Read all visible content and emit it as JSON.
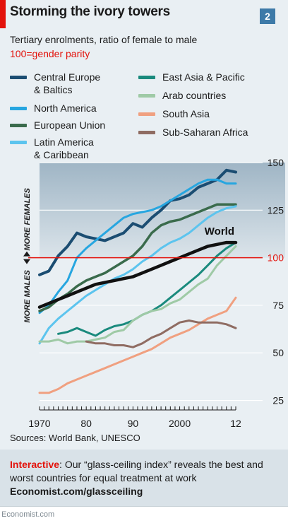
{
  "header": {
    "title": "Storming the ivory towers",
    "badge": "2",
    "subtitle": "Tertiary enrolments, ratio of female to male",
    "note": "100=gender parity"
  },
  "legend": {
    "items": [
      {
        "label": "Central Europe\n& Baltics",
        "color": "#1b4d72"
      },
      {
        "label": "North America",
        "color": "#27a6e0"
      },
      {
        "label": "European Union",
        "color": "#3a6b4c"
      },
      {
        "label": "Latin America\n& Caribbean",
        "color": "#5cc4ee"
      },
      {
        "label": "East Asia & Pacific",
        "color": "#1a8a7d"
      },
      {
        "label": "Arab countries",
        "color": "#9fcaa6"
      },
      {
        "label": "South Asia",
        "color": "#f0a080"
      },
      {
        "label": "Sub-Saharan Africa",
        "color": "#8f6c62"
      }
    ]
  },
  "chart_data": {
    "type": "line",
    "title": "Storming the ivory towers",
    "subtitle": "Tertiary enrolments, ratio of female to male",
    "xlim": [
      1970,
      2012
    ],
    "ylim": [
      20,
      150
    ],
    "yticks": [
      25,
      50,
      75,
      100,
      125,
      150
    ],
    "xtick_labels": [
      {
        "x": 1970,
        "label": "1970"
      },
      {
        "x": 1980,
        "label": "80"
      },
      {
        "x": 1990,
        "label": "90"
      },
      {
        "x": 2000,
        "label": "2000"
      },
      {
        "x": 2012,
        "label": "12"
      }
    ],
    "parity_line": 100,
    "parity_label": "100",
    "zone_labels": {
      "above": "MORE FEMALES",
      "below": "MORE MALES"
    },
    "annotations": [
      {
        "text": "World",
        "series": "World"
      }
    ],
    "series": [
      {
        "name": "Central Europe & Baltics",
        "color": "#1b4d72",
        "width": 4,
        "x": [
          1970,
          1972,
          1974,
          1976,
          1978,
          1980,
          1982,
          1984,
          1986,
          1988,
          1990,
          1992,
          1994,
          1996,
          1998,
          2000,
          2002,
          2004,
          2006,
          2008,
          2010,
          2012
        ],
        "y": [
          91,
          93,
          101,
          106,
          113,
          111,
          110,
          109,
          111,
          113,
          118,
          116,
          121,
          125,
          130,
          131,
          133,
          137,
          139,
          141,
          146,
          145
        ]
      },
      {
        "name": "North America",
        "color": "#27a6e0",
        "width": 3,
        "x": [
          1970,
          1972,
          1974,
          1976,
          1978,
          1980,
          1982,
          1984,
          1986,
          1988,
          1990,
          1992,
          1994,
          1996,
          1998,
          2000,
          2002,
          2004,
          2006,
          2008,
          2010,
          2012
        ],
        "y": [
          71,
          75,
          82,
          88,
          100,
          105,
          109,
          113,
          117,
          121,
          123,
          124,
          125,
          127,
          130,
          133,
          136,
          139,
          141,
          141,
          139,
          139
        ]
      },
      {
        "name": "European Union",
        "color": "#3a6b4c",
        "width": 3.5,
        "x": [
          1970,
          1972,
          1974,
          1976,
          1978,
          1980,
          1982,
          1984,
          1986,
          1988,
          1990,
          1992,
          1994,
          1996,
          1998,
          2000,
          2002,
          2004,
          2006,
          2008,
          2010,
          2012
        ],
        "y": [
          72,
          74,
          78,
          81,
          85,
          88,
          90,
          92,
          95,
          98,
          101,
          106,
          113,
          117,
          119,
          120,
          122,
          124,
          126,
          128,
          128,
          128
        ]
      },
      {
        "name": "Latin America & Caribbean",
        "color": "#5cc4ee",
        "width": 3,
        "x": [
          1970,
          1972,
          1974,
          1976,
          1978,
          1980,
          1982,
          1984,
          1986,
          1988,
          1990,
          1992,
          1994,
          1996,
          1998,
          2000,
          2002,
          2004,
          2006,
          2008,
          2010,
          2012
        ],
        "y": [
          55,
          63,
          68,
          72,
          76,
          80,
          83,
          86,
          89,
          91,
          94,
          98,
          101,
          105,
          108,
          110,
          113,
          117,
          121,
          124,
          126,
          127
        ]
      },
      {
        "name": "East Asia & Pacific",
        "color": "#1a8a7d",
        "width": 3,
        "x": [
          1974,
          1976,
          1978,
          1980,
          1982,
          1984,
          1986,
          1988,
          1990,
          1992,
          1994,
          1996,
          1998,
          2000,
          2002,
          2004,
          2006,
          2008,
          2010,
          2012
        ],
        "y": [
          60,
          61,
          63,
          61,
          59,
          62,
          64,
          65,
          67,
          70,
          72,
          75,
          79,
          83,
          87,
          91,
          96,
          101,
          105,
          108
        ]
      },
      {
        "name": "Arab countries",
        "color": "#9fcaa6",
        "width": 3,
        "x": [
          1970,
          1972,
          1974,
          1976,
          1978,
          1980,
          1982,
          1984,
          1986,
          1988,
          1990,
          1992,
          1994,
          1996,
          1998,
          2000,
          2002,
          2004,
          2006,
          2008,
          2010,
          2012
        ],
        "y": [
          56,
          56,
          57,
          55,
          56,
          56,
          57,
          58,
          61,
          62,
          67,
          70,
          72,
          73,
          76,
          78,
          82,
          86,
          89,
          96,
          101,
          106
        ]
      },
      {
        "name": "South Asia",
        "color": "#f0a080",
        "width": 3,
        "x": [
          1970,
          1972,
          1974,
          1976,
          1978,
          1980,
          1982,
          1984,
          1986,
          1988,
          1990,
          1992,
          1994,
          1996,
          1998,
          2000,
          2002,
          2004,
          2006,
          2008,
          2010,
          2012
        ],
        "y": [
          29,
          29,
          31,
          34,
          36,
          38,
          40,
          42,
          44,
          46,
          48,
          50,
          52,
          55,
          58,
          60,
          62,
          65,
          68,
          70,
          72,
          79
        ]
      },
      {
        "name": "Sub-Saharan Africa",
        "color": "#8f6c62",
        "width": 3,
        "x": [
          1980,
          1982,
          1984,
          1986,
          1988,
          1990,
          1992,
          1994,
          1996,
          1998,
          2000,
          2002,
          2004,
          2006,
          2008,
          2010,
          2012
        ],
        "y": [
          56,
          55,
          55,
          54,
          54,
          53,
          55,
          58,
          60,
          63,
          66,
          67,
          66,
          66,
          66,
          65,
          63
        ]
      },
      {
        "name": "World",
        "color": "#111111",
        "width": 4.5,
        "x": [
          1970,
          1972,
          1974,
          1976,
          1978,
          1980,
          1982,
          1984,
          1986,
          1988,
          1990,
          1992,
          1994,
          1996,
          1998,
          2000,
          2002,
          2004,
          2006,
          2008,
          2010,
          2012
        ],
        "y": [
          74,
          76,
          78,
          80,
          82,
          84,
          86,
          87,
          88,
          89,
          90,
          92,
          94,
          96,
          98,
          100,
          102,
          104,
          106,
          107,
          108,
          108
        ]
      }
    ]
  },
  "source": "Sources: World Bank, UNESCO",
  "promo": {
    "keyword": "Interactive",
    "text": ": Our “glass-ceiling index” reveals the best and worst countries for equal treatment at work",
    "link": "Economist.com/glassceiling"
  },
  "footer": "Economist.com"
}
